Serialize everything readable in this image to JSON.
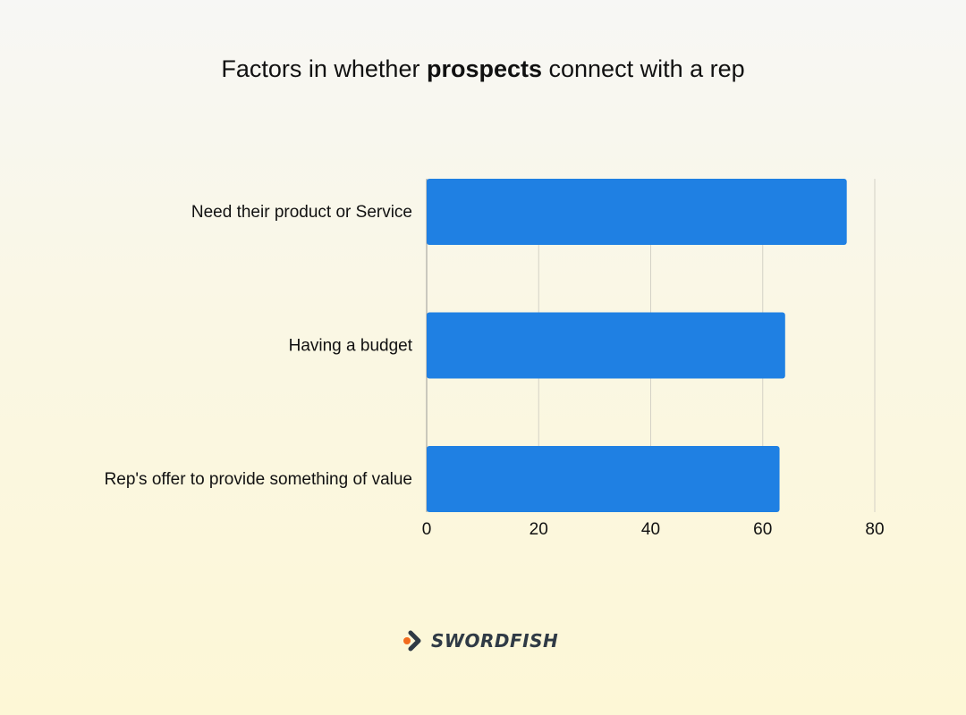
{
  "title": {
    "prefix": "Factors in whether ",
    "bold": "prospects",
    "suffix": " connect with a rep"
  },
  "chart_data": {
    "type": "bar",
    "orientation": "horizontal",
    "categories": [
      "Need their product or Service",
      "Having a budget",
      "Rep's offer to provide something of value"
    ],
    "values": [
      75,
      64,
      63
    ],
    "xlim": [
      0,
      80
    ],
    "xticks": [
      "0",
      "20",
      "40",
      "60",
      "80"
    ],
    "grid": true,
    "bar_color": "#1f80e3"
  },
  "brand": {
    "name": "SWORDFISH",
    "icon": "swordfish-arrow-logo-icon",
    "accent_color": "#f26b1d",
    "text_color": "#2f3a45"
  }
}
